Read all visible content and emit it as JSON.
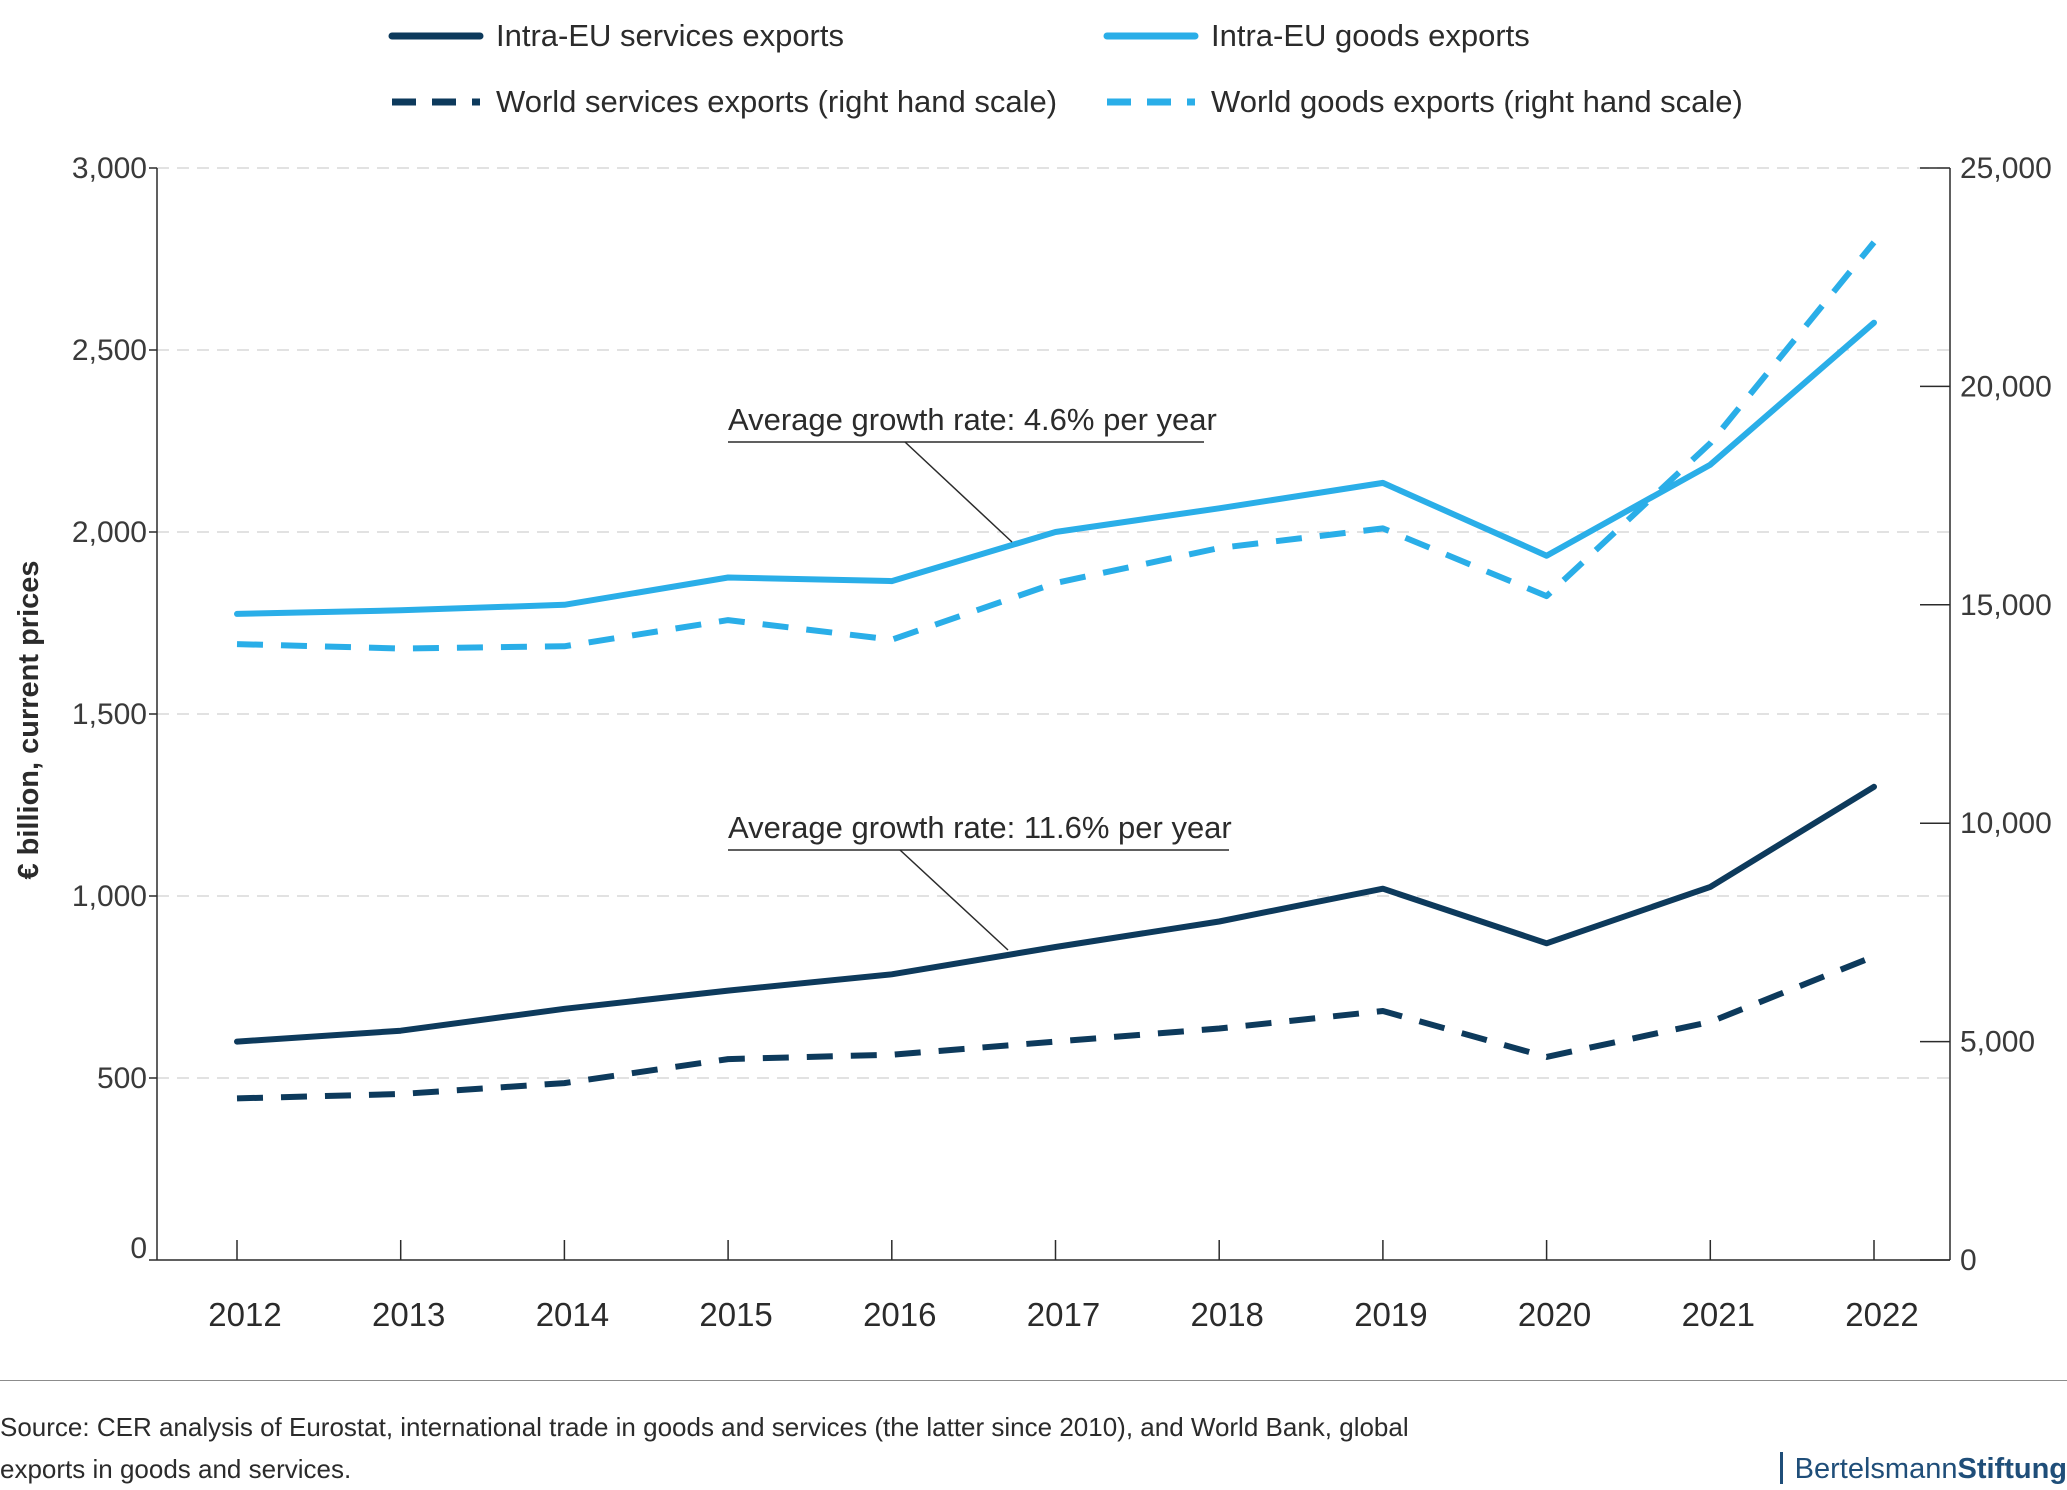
{
  "chart_data": {
    "type": "line",
    "title": "",
    "xlabel": "",
    "ylabel": "€ billion, current prices",
    "ylabel_right": "",
    "categories": [
      "2012",
      "2013",
      "2014",
      "2015",
      "2016",
      "2017",
      "2018",
      "2019",
      "2020",
      "2021",
      "2022"
    ],
    "ylim": [
      0,
      3000
    ],
    "y2lim": [
      0,
      25000
    ],
    "y_ticks": [
      "0",
      "500",
      "1,000",
      "1,500",
      "2,000",
      "2,500",
      "3,000"
    ],
    "y_tick_values": [
      0,
      500,
      1000,
      1500,
      2000,
      2500,
      3000
    ],
    "y2_ticks": [
      "0",
      "5,000",
      "10,000",
      "15,000",
      "20,000",
      "25,000"
    ],
    "y2_tick_values": [
      0,
      5000,
      10000,
      15000,
      20000,
      25000
    ],
    "grid": "horizontal dashed",
    "legend_position": "top",
    "series": [
      {
        "name": "Intra-EU services exports",
        "axis": "left",
        "color": "#0d3a5c",
        "dash": "solid",
        "values": [
          600,
          630,
          690,
          740,
          785,
          860,
          930,
          1020,
          870,
          1025,
          1300
        ]
      },
      {
        "name": "Intra-EU goods exports",
        "axis": "left",
        "color": "#2aaee8",
        "dash": "solid",
        "values": [
          1775,
          1785,
          1800,
          1875,
          1865,
          2000,
          2065,
          2135,
          1935,
          2185,
          2575
        ]
      },
      {
        "name": "World services exports (right hand scale)",
        "axis": "right",
        "color": "#0d3a5c",
        "dash": "dashed",
        "values": [
          3700,
          3800,
          4050,
          4600,
          4700,
          5000,
          5300,
          5700,
          4650,
          5450,
          6950
        ]
      },
      {
        "name": "World goods exports (right hand scale)",
        "axis": "right",
        "color": "#2aaee8",
        "dash": "dashed",
        "values": [
          14100,
          14000,
          14050,
          14650,
          14200,
          15500,
          16300,
          16750,
          15200,
          18700,
          23300
        ]
      }
    ],
    "annotations": [
      {
        "text": "Average growth rate: 4.6% per year",
        "series": "Intra-EU goods exports",
        "year": "2017"
      },
      {
        "text": "Average growth rate: 11.6% per year",
        "series": "Intra-EU services exports",
        "year": "2017"
      }
    ]
  },
  "footer": {
    "source": "Source: CER analysis of Eurostat, international trade in goods and services (the latter since 2010), and World Bank, global exports in goods and services.",
    "brand_light": "Bertelsmann",
    "brand_bold": "Stiftung"
  },
  "colors": {
    "dark_navy": "#0d3a5c",
    "light_blue": "#2aaee8",
    "gridline": "#d9d9d9",
    "axis": "#2b2b2b",
    "brand": "#1f4e79"
  }
}
